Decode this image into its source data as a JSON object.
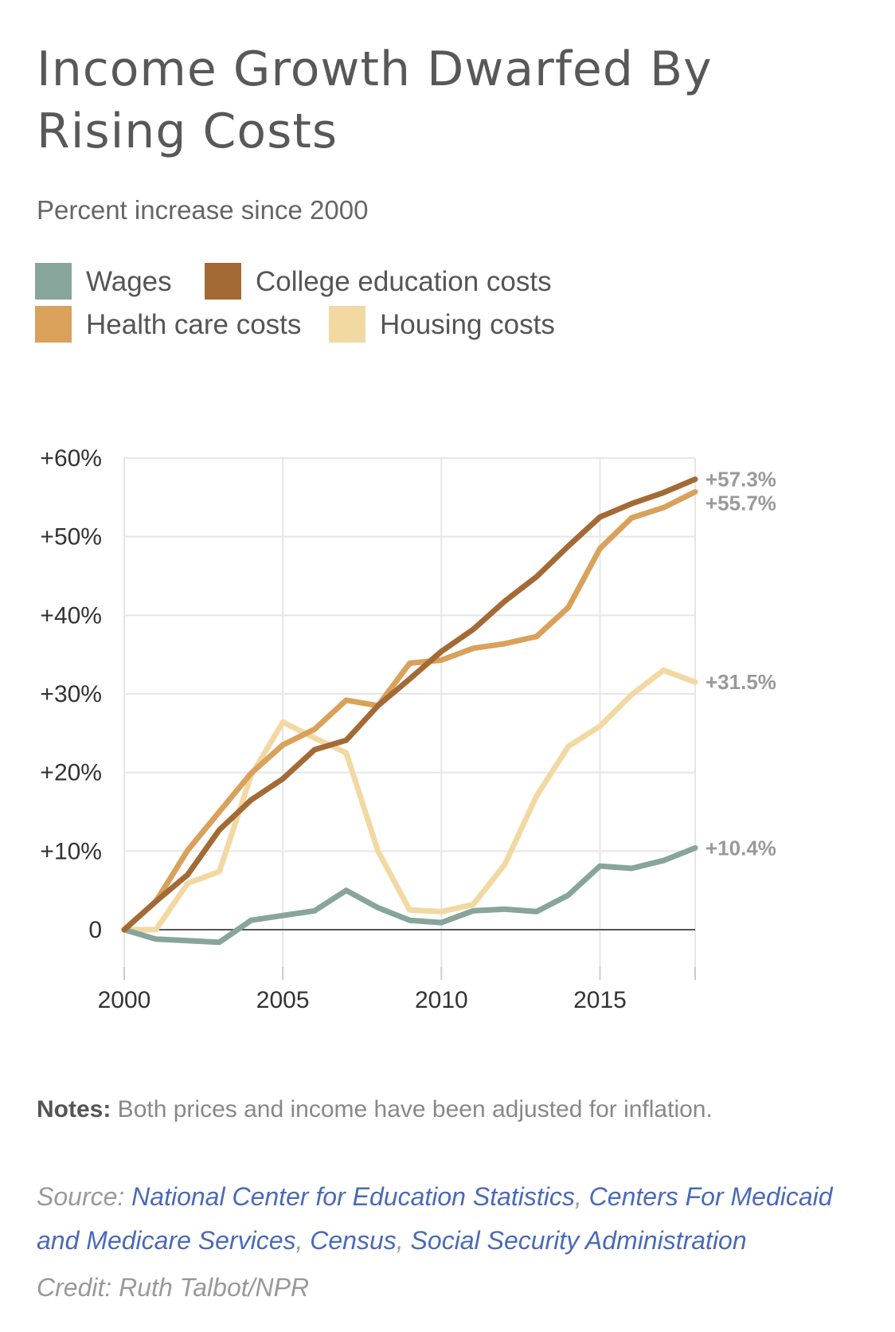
{
  "header": {
    "title": "Income Growth Dwarfed By Rising Costs",
    "subtitle": "Percent increase since 2000"
  },
  "legend": [
    {
      "label": "Wages",
      "color": "#87a59a"
    },
    {
      "label": "College education costs",
      "color": "#a46a35"
    },
    {
      "label": "Health care costs",
      "color": "#d9a15a"
    },
    {
      "label": "Housing costs",
      "color": "#f2d9a3"
    }
  ],
  "chart_data": {
    "type": "line",
    "title": "Income Growth Dwarfed By Rising Costs",
    "subtitle": "Percent increase since 2000",
    "xlabel": "",
    "ylabel": "",
    "xlim": [
      2000,
      2018
    ],
    "ylim": [
      -5,
      60
    ],
    "x": [
      2000,
      2001,
      2002,
      2003,
      2004,
      2005,
      2006,
      2007,
      2008,
      2009,
      2010,
      2011,
      2012,
      2013,
      2014,
      2015,
      2016,
      2017,
      2018
    ],
    "x_ticks": [
      2000,
      2005,
      2010,
      2015
    ],
    "x_tick_labels": [
      "2000",
      "2005",
      "2010",
      "2015"
    ],
    "y_ticks": [
      0,
      10,
      20,
      30,
      40,
      50,
      60
    ],
    "y_tick_labels": [
      "0",
      "+10%",
      "+20%",
      "+30%",
      "+40%",
      "+50%",
      "+60%"
    ],
    "grid": true,
    "series": [
      {
        "name": "Wages",
        "color": "#87a59a",
        "end_label": "+10.4%",
        "values": [
          0,
          -1.2,
          -1.4,
          -1.6,
          1.2,
          1.8,
          2.4,
          5.0,
          2.8,
          1.2,
          0.9,
          2.4,
          2.6,
          2.3,
          4.4,
          8.1,
          7.8,
          8.8,
          10.4
        ]
      },
      {
        "name": "College education costs",
        "color": "#a46a35",
        "end_label": "+57.3%",
        "values": [
          0,
          3.6,
          7.0,
          12.7,
          16.5,
          19.2,
          22.9,
          24.1,
          28.5,
          31.9,
          35.4,
          38.2,
          41.8,
          44.9,
          48.8,
          52.5,
          54.2,
          55.6,
          57.3
        ]
      },
      {
        "name": "Health care costs",
        "color": "#d9a15a",
        "end_label": "+55.7%",
        "values": [
          0,
          3.6,
          10.1,
          15.0,
          19.9,
          23.5,
          25.5,
          29.2,
          28.5,
          33.9,
          34.3,
          35.8,
          36.4,
          37.3,
          41.0,
          48.5,
          52.4,
          53.7,
          55.7
        ]
      },
      {
        "name": "Housing costs",
        "color": "#f2d9a3",
        "end_label": "+31.5%",
        "values": [
          0,
          0,
          5.9,
          7.4,
          19.6,
          26.4,
          24.4,
          22.5,
          10.0,
          2.5,
          2.3,
          3.2,
          8.3,
          17.0,
          23.3,
          25.9,
          29.9,
          33.0,
          31.5
        ]
      }
    ]
  },
  "notes": {
    "label": "Notes:",
    "text": " Both prices and income have been adjusted for inflation."
  },
  "source": {
    "label": "Source: ",
    "links": [
      "National Center for Education Statistics",
      "Centers For Medicaid and Medicare Services",
      "Census",
      "Social Security Administration"
    ],
    "separator": ", "
  },
  "credit": "Credit: Ruth Talbot/NPR"
}
